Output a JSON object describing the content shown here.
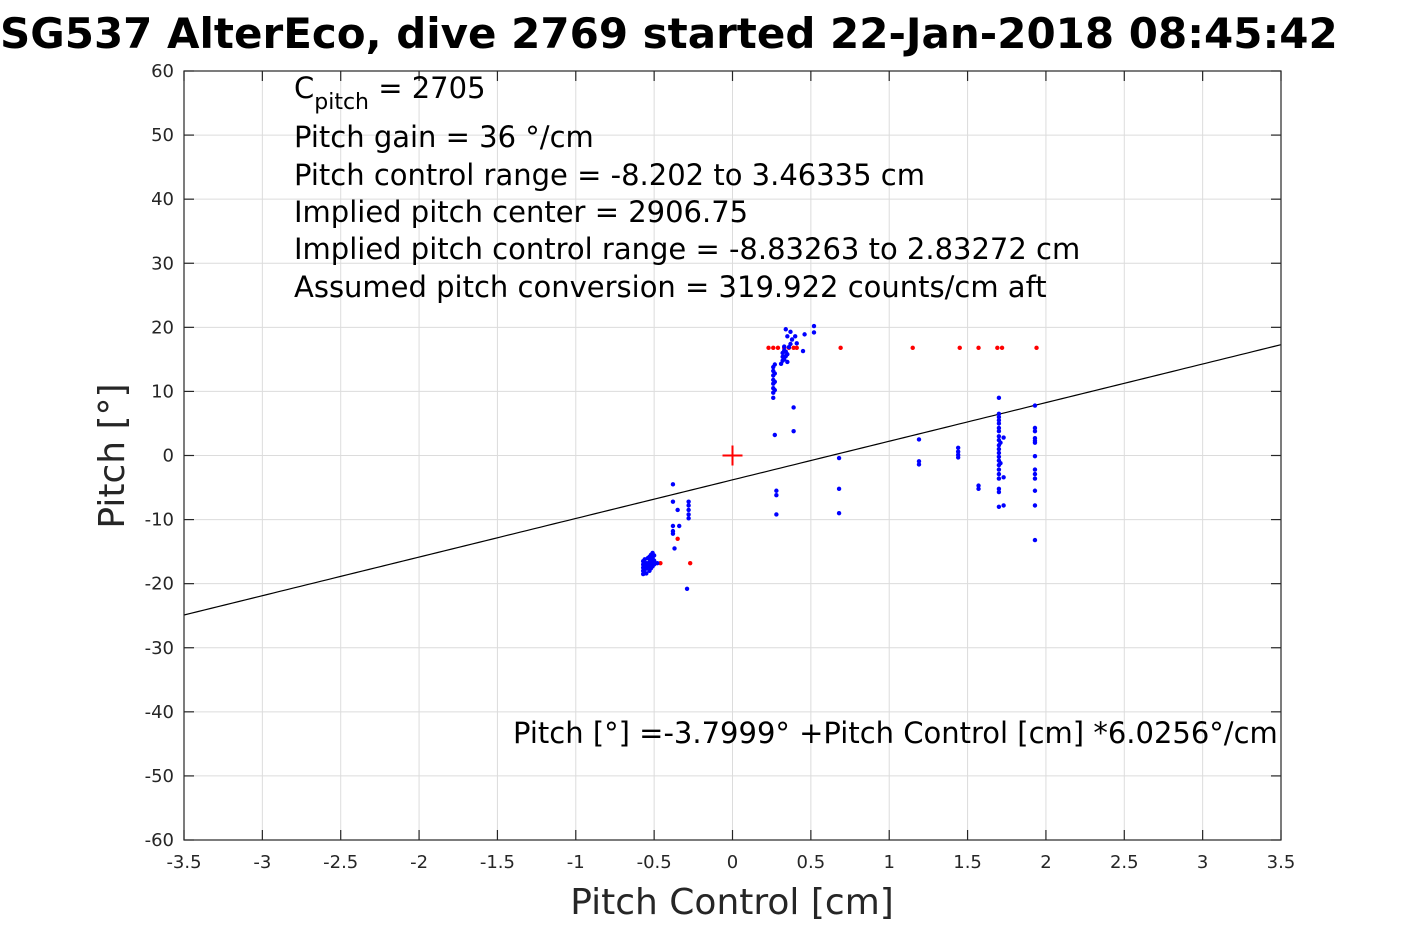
{
  "chart_data": {
    "type": "scatter",
    "title": "SG537 AlterEco, dive 2769 started 22-Jan-2018 08:45:42",
    "xlabel": "Pitch Control [cm]",
    "ylabel": "Pitch [°]",
    "xlim": [
      -3.5,
      3.5
    ],
    "ylim": [
      -60,
      60
    ],
    "xticks": [
      -3.5,
      -3,
      -2.5,
      -2,
      -1.5,
      -1,
      -0.5,
      0,
      0.5,
      1,
      1.5,
      2,
      2.5,
      3,
      3.5
    ],
    "xtick_labels": [
      "-3.5",
      "-3",
      "-2.5",
      "-2",
      "-1.5",
      "-1",
      "-0.5",
      "0",
      "0.5",
      "1",
      "1.5",
      "2",
      "2.5",
      "3",
      "3.5"
    ],
    "yticks": [
      -60,
      -50,
      -40,
      -30,
      -20,
      -10,
      0,
      10,
      20,
      30,
      40,
      50,
      60
    ],
    "ytick_labels": [
      "-60",
      "-50",
      "-40",
      "-30",
      "-20",
      "-10",
      "0",
      "10",
      "20",
      "30",
      "40",
      "50",
      "60"
    ],
    "grid": true,
    "annotations": {
      "cpitch_main": "C",
      "cpitch_sub": "pitch",
      "cpitch_value": " = 2705",
      "lines": [
        "Pitch gain = 36 °/cm",
        "Pitch control range = -8.202 to 3.46335 cm",
        "Implied pitch center = 2906.75",
        "Implied pitch control range = -8.83263 to 2.83272 cm",
        "Assumed pitch conversion = 319.922 counts/cm aft"
      ],
      "fit_equation": "Pitch [°] =-3.7999° +Pitch Control [cm] *6.0256°/cm"
    },
    "fit_line": {
      "intercept": -3.7999,
      "slope": 6.0256,
      "color": "#000000"
    },
    "center_marker": {
      "x": 0,
      "y": 0,
      "color": "#ff0000"
    },
    "series": [
      {
        "color": "#0000ff",
        "points": [
          [
            -0.57,
            -16.5
          ],
          [
            -0.57,
            -17.0
          ],
          [
            -0.57,
            -17.5
          ],
          [
            -0.57,
            -18.0
          ],
          [
            -0.57,
            -18.5
          ],
          [
            -0.56,
            -16.2
          ],
          [
            -0.56,
            -17.2
          ],
          [
            -0.56,
            -17.8
          ],
          [
            -0.55,
            -16.8
          ],
          [
            -0.55,
            -17.6
          ],
          [
            -0.55,
            -18.4
          ],
          [
            -0.54,
            -16.0
          ],
          [
            -0.54,
            -17.0
          ],
          [
            -0.54,
            -17.4
          ],
          [
            -0.53,
            -15.8
          ],
          [
            -0.53,
            -16.6
          ],
          [
            -0.53,
            -17.2
          ],
          [
            -0.53,
            -18.0
          ],
          [
            -0.52,
            -15.5
          ],
          [
            -0.52,
            -16.3
          ],
          [
            -0.52,
            -17.0
          ],
          [
            -0.52,
            -17.6
          ],
          [
            -0.51,
            -15.2
          ],
          [
            -0.51,
            -16.0
          ],
          [
            -0.51,
            -16.8
          ],
          [
            -0.51,
            -17.3
          ],
          [
            -0.5,
            -15.6
          ],
          [
            -0.5,
            -16.4
          ],
          [
            -0.5,
            -17.0
          ],
          [
            -0.48,
            -16.8
          ],
          [
            -0.38,
            -4.5
          ],
          [
            -0.38,
            -7.2
          ],
          [
            -0.38,
            -11.0
          ],
          [
            -0.38,
            -11.8
          ],
          [
            -0.38,
            -12.2
          ],
          [
            -0.37,
            -14.5
          ],
          [
            -0.35,
            -8.5
          ],
          [
            -0.34,
            -11.0
          ],
          [
            -0.28,
            -7.2
          ],
          [
            -0.28,
            -7.8
          ],
          [
            -0.28,
            -8.5
          ],
          [
            -0.28,
            -9.2
          ],
          [
            -0.28,
            -9.8
          ],
          [
            -0.29,
            -20.8
          ],
          [
            0.26,
            9.0
          ],
          [
            0.26,
            9.8
          ],
          [
            0.26,
            10.5
          ],
          [
            0.26,
            11.2
          ],
          [
            0.26,
            11.8
          ],
          [
            0.26,
            12.5
          ],
          [
            0.26,
            13.2
          ],
          [
            0.26,
            13.8
          ],
          [
            0.27,
            10.2
          ],
          [
            0.27,
            11.5
          ],
          [
            0.27,
            12.8
          ],
          [
            0.27,
            14.2
          ],
          [
            0.27,
            3.2
          ],
          [
            0.28,
            -5.5
          ],
          [
            0.28,
            -6.2
          ],
          [
            0.28,
            -9.2
          ],
          [
            0.31,
            14.3
          ],
          [
            0.32,
            14.8
          ],
          [
            0.32,
            15.4
          ],
          [
            0.32,
            16.0
          ],
          [
            0.33,
            15.0
          ],
          [
            0.33,
            16.4
          ],
          [
            0.33,
            17.0
          ],
          [
            0.34,
            15.5
          ],
          [
            0.34,
            16.2
          ],
          [
            0.34,
            19.7
          ],
          [
            0.35,
            14.6
          ],
          [
            0.35,
            15.8
          ],
          [
            0.35,
            18.6
          ],
          [
            0.36,
            16.9
          ],
          [
            0.37,
            17.4
          ],
          [
            0.37,
            19.3
          ],
          [
            0.38,
            18.1
          ],
          [
            0.39,
            3.8
          ],
          [
            0.39,
            7.5
          ],
          [
            0.4,
            18.6
          ],
          [
            0.41,
            17.5
          ],
          [
            0.45,
            16.3
          ],
          [
            0.46,
            18.9
          ],
          [
            0.52,
            19.2
          ],
          [
            0.52,
            20.2
          ],
          [
            0.68,
            -0.4
          ],
          [
            0.68,
            -5.2
          ],
          [
            0.68,
            -9.0
          ],
          [
            1.19,
            2.5
          ],
          [
            1.19,
            -0.9
          ],
          [
            1.19,
            -1.4
          ],
          [
            1.44,
            1.2
          ],
          [
            1.44,
            0.6
          ],
          [
            1.44,
            0.1
          ],
          [
            1.44,
            -0.3
          ],
          [
            1.57,
            -4.7
          ],
          [
            1.57,
            -5.2
          ],
          [
            1.7,
            9.0
          ],
          [
            1.7,
            6.5
          ],
          [
            1.7,
            6.0
          ],
          [
            1.7,
            5.5
          ],
          [
            1.7,
            5.0
          ],
          [
            1.7,
            4.3
          ],
          [
            1.7,
            3.8
          ],
          [
            1.7,
            3.0
          ],
          [
            1.7,
            2.4
          ],
          [
            1.7,
            1.6
          ],
          [
            1.7,
            1.0
          ],
          [
            1.7,
            0.4
          ],
          [
            1.7,
            -0.2
          ],
          [
            1.7,
            -0.8
          ],
          [
            1.7,
            -1.5
          ],
          [
            1.7,
            -2.2
          ],
          [
            1.7,
            -2.9
          ],
          [
            1.7,
            -3.6
          ],
          [
            1.7,
            -5.2
          ],
          [
            1.7,
            -5.7
          ],
          [
            1.7,
            -8.0
          ],
          [
            1.71,
            2.0
          ],
          [
            1.71,
            -1.2
          ],
          [
            1.73,
            2.8
          ],
          [
            1.73,
            -3.4
          ],
          [
            1.73,
            -7.8
          ],
          [
            1.93,
            7.8
          ],
          [
            1.93,
            4.3
          ],
          [
            1.93,
            3.8
          ],
          [
            1.93,
            2.7
          ],
          [
            1.93,
            2.3
          ],
          [
            1.93,
            2.0
          ],
          [
            1.93,
            -0.1
          ],
          [
            1.93,
            -2.2
          ],
          [
            1.93,
            -2.9
          ],
          [
            1.93,
            -3.6
          ],
          [
            1.93,
            -5.5
          ],
          [
            1.93,
            -7.8
          ],
          [
            1.93,
            -13.2
          ]
        ]
      },
      {
        "color": "#ff0000",
        "points": [
          [
            -0.46,
            -16.8
          ],
          [
            -0.35,
            -13.0
          ],
          [
            -0.27,
            -16.8
          ],
          [
            0.23,
            16.8
          ],
          [
            0.26,
            16.8
          ],
          [
            0.29,
            16.8
          ],
          [
            0.33,
            16.8
          ],
          [
            0.36,
            16.8
          ],
          [
            0.39,
            16.8
          ],
          [
            0.41,
            16.8
          ],
          [
            0.69,
            16.8
          ],
          [
            1.15,
            16.8
          ],
          [
            1.45,
            16.8
          ],
          [
            1.57,
            16.8
          ],
          [
            1.69,
            16.8
          ],
          [
            1.72,
            16.8
          ],
          [
            1.94,
            16.8
          ]
        ]
      }
    ]
  }
}
